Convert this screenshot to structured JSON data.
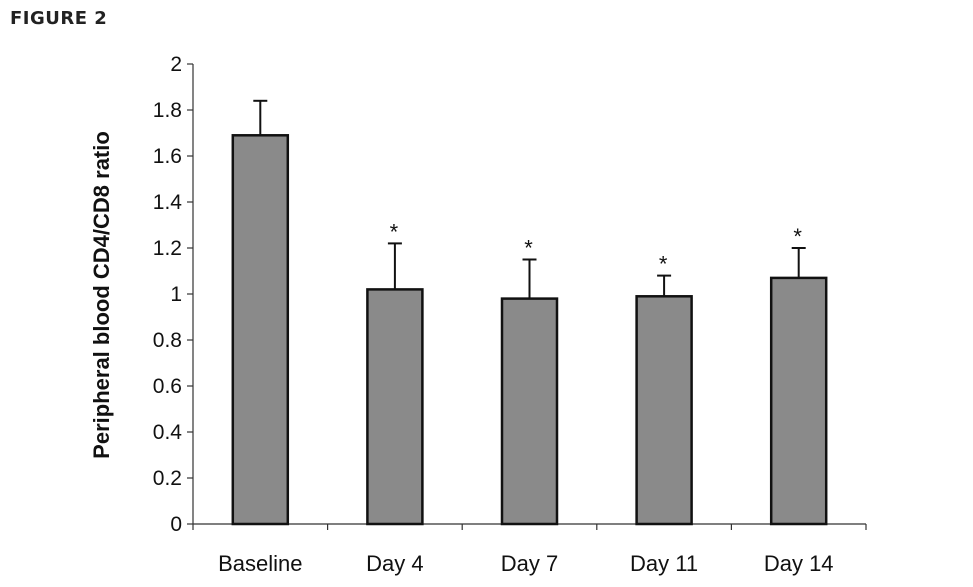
{
  "figure_label": "FIGURE 2",
  "colors": {
    "bar_fill": "#8a8a8a",
    "bar_stroke": "#111111",
    "axis": "#333333",
    "text": "#111111"
  },
  "chart_data": {
    "type": "bar",
    "title": "",
    "xlabel": "",
    "ylabel": "Peripheral blood CD4/CD8 ratio",
    "categories": [
      "Baseline",
      "Day 4",
      "Day 7",
      "Day 11",
      "Day 14"
    ],
    "values": [
      1.69,
      1.02,
      0.98,
      0.99,
      1.07
    ],
    "error_upper": [
      0.15,
      0.2,
      0.17,
      0.09,
      0.13
    ],
    "annotations": [
      "",
      "*",
      "*",
      "*",
      "*"
    ],
    "ylim": [
      0,
      2
    ],
    "yticks": [
      "0",
      "0.2",
      "0.4",
      "0.6",
      "0.8",
      "1",
      "1.2",
      "1.4",
      "1.6",
      "1.8",
      "2"
    ],
    "grid": false,
    "legend": "none"
  }
}
